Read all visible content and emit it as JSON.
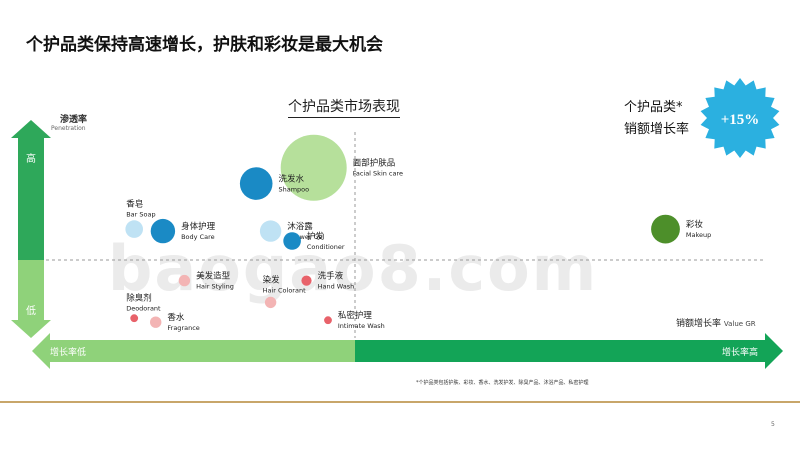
{
  "header": {
    "title": "个护品类保持高速增长，护肤和彩妆是最大机会"
  },
  "footer": {
    "footnote": "*个护品类包括护肤、彩妆、香水、洗发护发、除臭产品、沐浴产品、私密护理",
    "page": "5"
  },
  "watermark": "baogao8.com",
  "growth_badge": {
    "label_line1": "个护品类*",
    "label_line2": "销额增长率",
    "value": "+15%",
    "color": "#2bb0e0"
  },
  "colors": {
    "accent_dark": "#13a457",
    "accent_light": "#8fd27a",
    "bubble_blue": "#1a8ac5",
    "bubble_lightblue": "#bfe2f4",
    "bubble_green": "#b6e09b",
    "bubble_darkgreen": "#4d8f2a",
    "bubble_pink": "#f3b4b4",
    "bubble_red": "#e8626a"
  },
  "chart_data": {
    "type": "scatter",
    "title": "个护品类市场表现",
    "y_axis": {
      "label": "渗透率",
      "label_en": "Penetration",
      "high": "高",
      "low": "低"
    },
    "x_axis": {
      "label": "销额增长率",
      "label_en": "Value GR",
      "low": "增长率低",
      "high": "增长率高"
    },
    "grid": "quadrant dashed dividers",
    "points": [
      {
        "cn": "面部护肤品",
        "en": "Facial Skin  care",
        "x": 0.37,
        "y": 0.86,
        "size": 1.0,
        "color": "#b6e09b",
        "label_side": "right"
      },
      {
        "cn": "洗发水",
        "en": "Shampoo",
        "x": 0.29,
        "y": 0.78,
        "size": 0.46,
        "color": "#1a8ac5",
        "label_side": "right"
      },
      {
        "cn": "香皂",
        "en": "Bar Soap",
        "x": 0.12,
        "y": 0.55,
        "size": 0.22,
        "color": "#bfe2f4",
        "label_side": "above"
      },
      {
        "cn": "身体护理",
        "en": "Body Care",
        "x": 0.16,
        "y": 0.54,
        "size": 0.33,
        "color": "#1a8ac5",
        "label_side": "right"
      },
      {
        "cn": "沐浴露",
        "en": "Shower Gel",
        "x": 0.31,
        "y": 0.54,
        "size": 0.28,
        "color": "#bfe2f4",
        "label_side": "right"
      },
      {
        "cn": "护发",
        "en": "Conditioner",
        "x": 0.34,
        "y": 0.49,
        "size": 0.22,
        "color": "#1a8ac5",
        "label_side": "right"
      },
      {
        "cn": "彩妆",
        "en": "Makeup",
        "x": 0.86,
        "y": 0.55,
        "size": 0.4,
        "color": "#4d8f2a",
        "label_side": "right"
      },
      {
        "cn": "美发造型",
        "en": "Hair Styling",
        "x": 0.19,
        "y": 0.29,
        "size": 0.12,
        "color": "#f3b4b4",
        "label_side": "right"
      },
      {
        "cn": "洗手液",
        "en": "Hand Wash",
        "x": 0.36,
        "y": 0.29,
        "size": 0.1,
        "color": "#e8626a",
        "label_side": "right"
      },
      {
        "cn": "除臭剂",
        "en": "Deodorant",
        "x": 0.12,
        "y": 0.1,
        "size": 0.06,
        "color": "#e8626a",
        "label_side": "above"
      },
      {
        "cn": "染发",
        "en": "Hair Colorant",
        "x": 0.31,
        "y": 0.18,
        "size": 0.12,
        "color": "#f3b4b4",
        "label_side": "above"
      },
      {
        "cn": "香水",
        "en": "Fragrance",
        "x": 0.15,
        "y": 0.08,
        "size": 0.12,
        "color": "#f3b4b4",
        "label_side": "right"
      },
      {
        "cn": "私密护理",
        "en": "Intimate Wash",
        "x": 0.39,
        "y": 0.09,
        "size": 0.06,
        "color": "#e8626a",
        "label_side": "right"
      }
    ]
  }
}
